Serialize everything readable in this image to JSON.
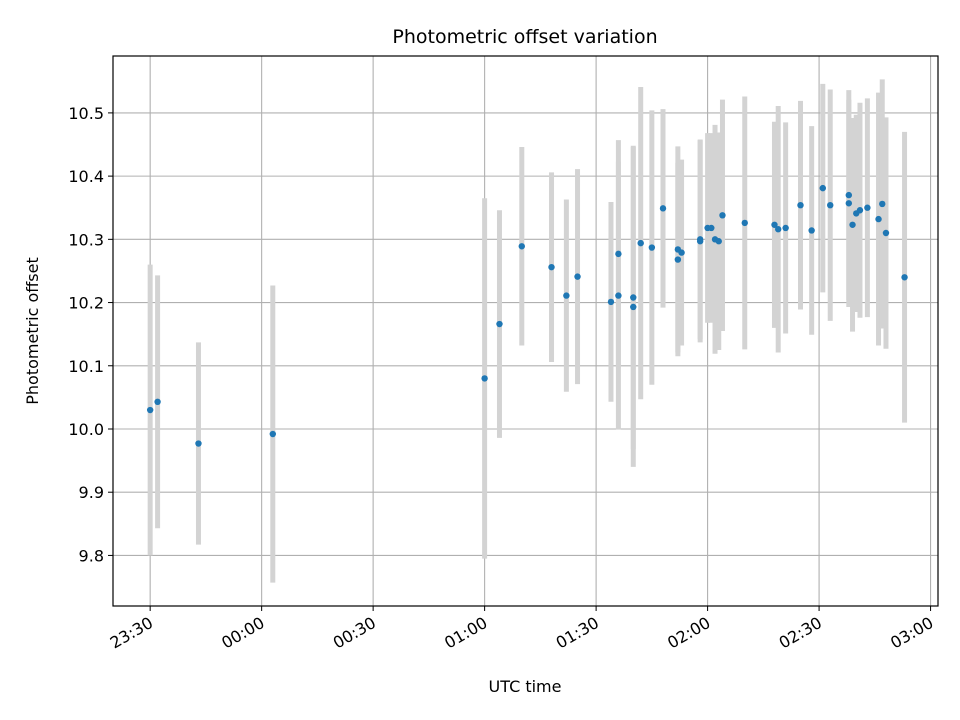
{
  "chart_data": {
    "type": "scatter",
    "title": "Photometric offset variation",
    "xlabel": "UTC time",
    "ylabel": "Photometric offset",
    "x_unit": "HH:MM (UTC, day starts 23:30 on previous date)",
    "xlim": [
      "23:20",
      "03:02"
    ],
    "ylim": [
      9.72,
      10.59
    ],
    "x_ticks": [
      "23:30",
      "00:00",
      "00:30",
      "01:00",
      "01:30",
      "02:00",
      "02:30",
      "03:00"
    ],
    "y_ticks": [
      9.8,
      9.9,
      10.0,
      10.1,
      10.2,
      10.3,
      10.4,
      10.5
    ],
    "grid": true,
    "colors": {
      "points": "#1f77b4",
      "errorbars": "#d3d3d3",
      "grid": "#b0b0b0"
    },
    "series": [
      {
        "x": [
          "23:30",
          "23:32",
          "23:43",
          "00:03",
          "01:00",
          "01:04",
          "01:10",
          "01:18",
          "01:22",
          "01:25",
          "01:34",
          "01:36",
          "01:36",
          "01:40",
          "01:40",
          "01:42",
          "01:45",
          "01:48",
          "01:52",
          "01:52",
          "01:53",
          "01:58",
          "01:58",
          "02:00",
          "02:01",
          "02:02",
          "02:03",
          "02:04",
          "02:10",
          "02:18",
          "02:19",
          "02:21",
          "02:25",
          "02:28",
          "02:31",
          "02:33",
          "02:38",
          "02:38",
          "02:39",
          "02:40",
          "02:41",
          "02:43",
          "02:46",
          "02:47",
          "02:48",
          "02:53"
        ],
        "y": [
          10.03,
          10.043,
          9.977,
          9.992,
          10.08,
          10.166,
          10.289,
          10.256,
          10.211,
          10.241,
          10.201,
          10.277,
          10.211,
          10.193,
          10.208,
          10.294,
          10.287,
          10.349,
          10.284,
          10.268,
          10.279,
          10.3,
          10.297,
          10.318,
          10.318,
          10.3,
          10.297,
          10.338,
          10.326,
          10.323,
          10.316,
          10.318,
          10.354,
          10.314,
          10.381,
          10.354,
          10.37,
          10.357,
          10.323,
          10.341,
          10.346,
          10.35,
          10.332,
          10.356,
          10.31,
          10.24
        ],
        "yerr": [
          0.23,
          0.2,
          0.16,
          0.235,
          0.285,
          0.18,
          0.157,
          0.15,
          0.152,
          0.17,
          0.158,
          0.18,
          0.212,
          0.253,
          0.24,
          0.247,
          0.217,
          0.157,
          0.163,
          0.153,
          0.147,
          0.158,
          0.16,
          0.15,
          0.15,
          0.181,
          0.172,
          0.183,
          0.2,
          0.163,
          0.195,
          0.167,
          0.165,
          0.165,
          0.165,
          0.183,
          0.166,
          0.164,
          0.169,
          0.156,
          0.17,
          0.173,
          0.2,
          0.197,
          0.183,
          0.23
        ]
      }
    ]
  }
}
